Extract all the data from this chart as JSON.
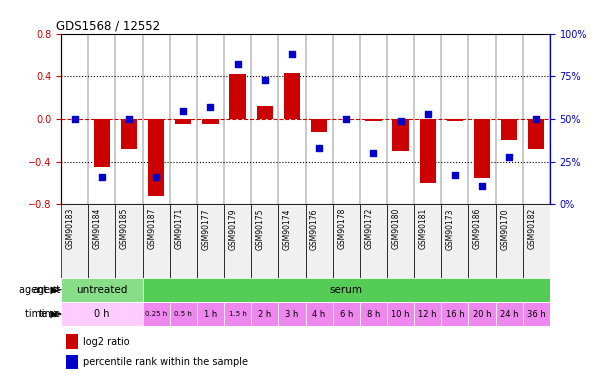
{
  "title": "GDS1568 / 12552",
  "samples": [
    "GSM90183",
    "GSM90184",
    "GSM90185",
    "GSM90187",
    "GSM90171",
    "GSM90177",
    "GSM90179",
    "GSM90175",
    "GSM90174",
    "GSM90176",
    "GSM90178",
    "GSM90172",
    "GSM90180",
    "GSM90181",
    "GSM90173",
    "GSM90186",
    "GSM90170",
    "GSM90182"
  ],
  "log2_ratio": [
    0.0,
    -0.45,
    -0.28,
    -0.72,
    -0.05,
    -0.05,
    0.42,
    0.12,
    0.43,
    -0.12,
    0.0,
    -0.02,
    -0.3,
    -0.6,
    -0.02,
    -0.55,
    -0.2,
    -0.28
  ],
  "percentile_rank": [
    50,
    16,
    50,
    16,
    55,
    57,
    82,
    73,
    88,
    33,
    50,
    30,
    49,
    53,
    17,
    11,
    28,
    50
  ],
  "ylim_left": [
    -0.8,
    0.8
  ],
  "ylim_right": [
    0,
    100
  ],
  "yticks_left": [
    -0.8,
    -0.4,
    0.0,
    0.4,
    0.8
  ],
  "yticks_right": [
    0,
    25,
    50,
    75,
    100
  ],
  "bar_color": "#cc0000",
  "dot_color": "#0000cc",
  "hline_color": "#cc0000",
  "agent_untreated_color": "#88dd88",
  "agent_serum_color": "#55cc55",
  "time_0h_color": "#ffccff",
  "time_other_color": "#ee88ee",
  "agent_labels": [
    "untreated",
    "serum"
  ],
  "untreated_count": 3,
  "legend_red": "log2 ratio",
  "legend_blue": "percentile rank within the sample",
  "left_tick_color": "#cc0000",
  "right_tick_color": "#0000cc",
  "time_per_sample": [
    "0 h",
    "0 h",
    "0 h",
    "0.25 h",
    "0.5 h",
    "1 h",
    "1.5 h",
    "2 h",
    "3 h",
    "4 h",
    "6 h",
    "8 h",
    "10 h",
    "12 h",
    "16 h",
    "20 h",
    "24 h",
    "36 h"
  ]
}
